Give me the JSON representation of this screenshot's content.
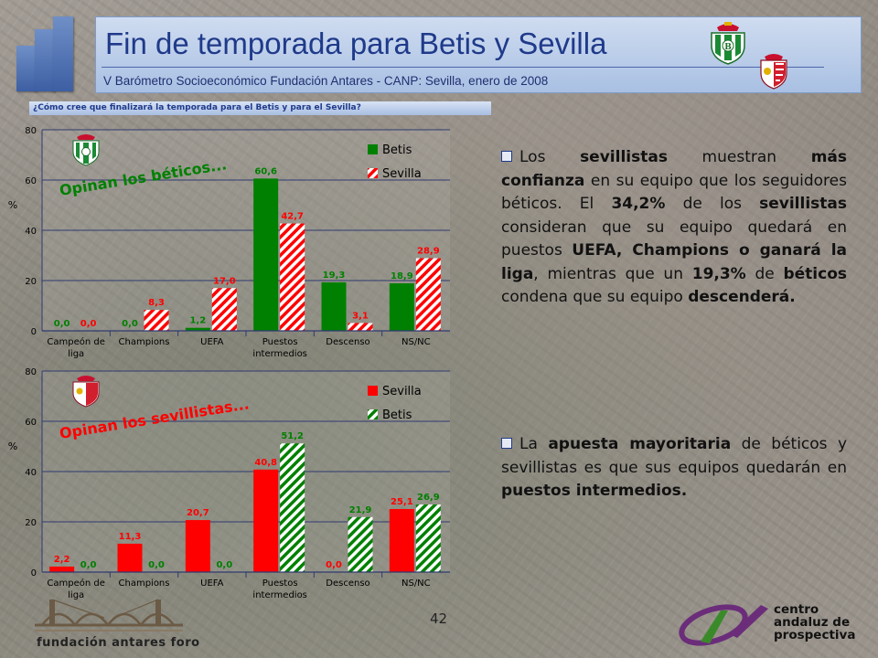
{
  "header": {
    "title": "Fin de temporada para Betis y Sevilla",
    "subtitle": "V Barómetro Socioeconómico Fundación Antares - CANP: Sevilla, enero de 2008"
  },
  "question": "¿Cómo cree que finalizará la temporada para el Betis y para el Sevilla?",
  "colors": {
    "betis": "#008000",
    "sevilla": "#ff0000",
    "title": "#1f3a8a",
    "header_bg": "#b8cbe8"
  },
  "chart_data": [
    {
      "type": "bar",
      "annotation": "Opinan los béticos...",
      "ylabel": "%",
      "ylim": [
        0,
        80
      ],
      "yticks": [
        0,
        20,
        40,
        60,
        80
      ],
      "categories": [
        "Campeón de liga",
        "Champions",
        "UEFA",
        "Puestos intermedios",
        "Descenso",
        "NS/NC"
      ],
      "series": [
        {
          "name": "Betis",
          "color": "#008000",
          "pattern": "solid",
          "values": [
            0.0,
            0.0,
            1.2,
            60.6,
            19.3,
            18.9
          ],
          "labels": [
            "0,0",
            "0,0",
            "1,2",
            "60,6",
            "19,3",
            "18,9"
          ]
        },
        {
          "name": "Sevilla",
          "color": "#ff0000",
          "pattern": "hatch",
          "values": [
            0.0,
            8.3,
            17.0,
            42.7,
            3.1,
            28.9
          ],
          "labels": [
            "0,0",
            "8,3",
            "17,0",
            "42,7",
            "3,1",
            "28,9"
          ]
        }
      ],
      "legend": "top-right",
      "grid": true
    },
    {
      "type": "bar",
      "annotation": "Opinan los sevillistas...",
      "ylabel": "%",
      "ylim": [
        0,
        80
      ],
      "yticks": [
        0,
        20,
        40,
        60,
        80
      ],
      "categories": [
        "Campeón de liga",
        "Champions",
        "UEFA",
        "Puestos intermedios",
        "Descenso",
        "NS/NC"
      ],
      "series": [
        {
          "name": "Sevilla",
          "color": "#ff0000",
          "pattern": "solid",
          "values": [
            2.2,
            11.3,
            20.7,
            40.8,
            0.0,
            25.1
          ],
          "labels": [
            "2,2",
            "11,3",
            "20,7",
            "40,8",
            "0,0",
            "25,1"
          ]
        },
        {
          "name": "Betis",
          "color": "#008000",
          "pattern": "hatch",
          "values": [
            0.0,
            0.0,
            0.0,
            51.2,
            21.9,
            26.9
          ],
          "labels": [
            "0,0",
            "0,0",
            "0,0",
            "51,2",
            "21,9",
            "26,9"
          ]
        }
      ],
      "legend": "top-right",
      "grid": true
    }
  ],
  "bullets": [
    [
      {
        "t": "Los "
      },
      {
        "t": "sevillistas",
        "b": true
      },
      {
        "t": " muestran "
      },
      {
        "t": "más confianza",
        "b": true
      },
      {
        "t": " en su equipo que los seguidores béticos. El "
      },
      {
        "t": "34,2%",
        "b": true
      },
      {
        "t": " de los "
      },
      {
        "t": "sevillistas",
        "b": true
      },
      {
        "t": " consideran que su equipo quedará en puestos "
      },
      {
        "t": "UEFA, Champions o ganará la liga",
        "b": true
      },
      {
        "t": ", mientras que un "
      },
      {
        "t": "19,3%",
        "b": true
      },
      {
        "t": " de "
      },
      {
        "t": "béticos",
        "b": true
      },
      {
        "t": " condena que su equipo "
      },
      {
        "t": "descenderá.",
        "b": true
      }
    ],
    [
      {
        "t": "La "
      },
      {
        "t": "apuesta mayoritaria",
        "b": true
      },
      {
        "t": " de béticos y sevillistas es que sus equipos quedarán en "
      },
      {
        "t": "puestos intermedios.",
        "b": true
      }
    ]
  ],
  "footer": {
    "page_number": "42",
    "left_logo_text": "fundación antares foro",
    "right_logo_text": [
      "centro",
      "andaluz de",
      "prospectiva"
    ]
  },
  "icons": [
    "betis-crest-icon",
    "sevilla-crest-icon",
    "building-blocks-icon",
    "bridge-logo-icon",
    "centro-andaluz-logo-icon"
  ]
}
